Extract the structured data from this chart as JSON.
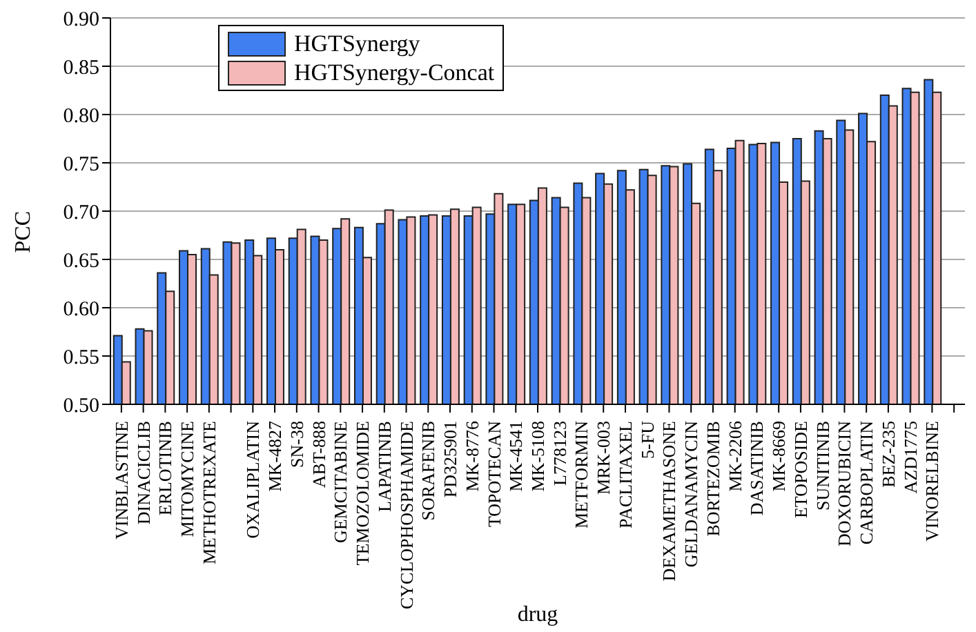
{
  "chart_data": {
    "type": "bar",
    "xlabel": "drug",
    "ylabel": "PCC",
    "categories": [
      "VINBLASTINE",
      "DINACICLIB",
      "ERLOTINIB",
      "MITOMYCINE",
      "METHOTREXATE",
      null,
      "OXALIPLATIN",
      "MK-4827",
      "SN-38",
      "ABT-888",
      "GEMCITABINE",
      "TEMOZOLOMIDE",
      "LAPATINIB",
      "CYCLOPHOSPHAMIDE",
      "SORAFENIB",
      "PD325901",
      "MK-8776",
      "TOPOTECAN",
      "MK-4541",
      "MK-5108",
      "L778123",
      "METFORMIN",
      "MRK-003",
      "PACLITAXEL",
      "5-FU",
      "DEXAMETHASONE",
      "GELDANAMYCIN",
      "BORTEZOMIB",
      "MK-2206",
      "DASATINIB",
      "MK-8669",
      "ETOPOSIDE",
      "SUNITINIB",
      "DOXORUBICIN",
      "CARBOPLATIN",
      "BEZ-235",
      "AZD1775",
      "VINORELBINE",
      null
    ],
    "series": [
      {
        "name": "HGTSynergy",
        "color": "#3f7fef",
        "values": [
          0.571,
          0.578,
          0.636,
          0.659,
          0.661,
          0.668,
          0.67,
          0.672,
          0.672,
          0.674,
          0.682,
          0.683,
          0.687,
          0.691,
          0.695,
          0.695,
          0.695,
          0.697,
          0.707,
          0.711,
          0.714,
          0.729,
          0.739,
          0.742,
          0.743,
          0.747,
          0.749,
          0.764,
          0.765,
          0.769,
          0.771,
          0.775,
          0.783,
          0.794,
          0.801,
          0.82,
          0.827,
          0.836,
          null
        ]
      },
      {
        "name": "HGTSynergy-Concat",
        "color": "#f4b8b8",
        "values": [
          0.544,
          0.576,
          0.617,
          0.655,
          0.634,
          0.667,
          0.654,
          0.66,
          0.681,
          0.67,
          0.692,
          0.652,
          0.701,
          0.694,
          0.696,
          0.702,
          0.704,
          0.718,
          0.707,
          0.724,
          0.704,
          0.714,
          0.728,
          0.722,
          0.737,
          0.746,
          0.708,
          0.742,
          0.773,
          0.77,
          0.73,
          0.731,
          0.775,
          0.784,
          0.772,
          0.809,
          0.823,
          0.823,
          null
        ]
      }
    ],
    "ylim": [
      0.5,
      0.9
    ],
    "yticks": [
      {
        "value": 0.5,
        "label": "0.50"
      },
      0.55,
      {
        "value": 0.6,
        "label": "0.60"
      },
      0.65,
      {
        "value": 0.7,
        "label": "0.70"
      },
      0.75,
      {
        "value": 0.8,
        "label": "0.80"
      },
      0.85,
      {
        "value": 0.9,
        "label": "0.90"
      }
    ],
    "grid": "y",
    "legend": "top left"
  }
}
